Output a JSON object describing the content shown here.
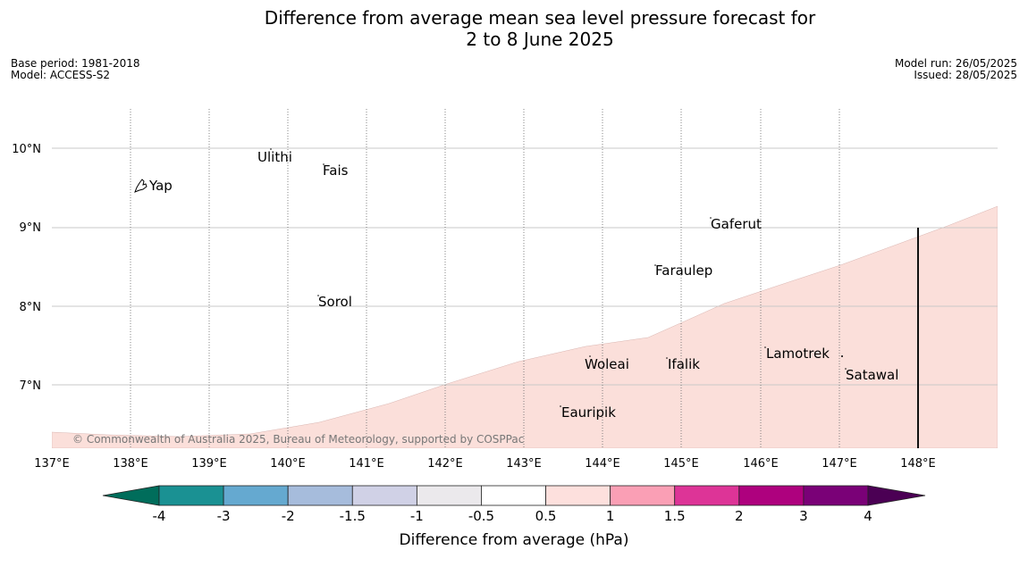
{
  "title": {
    "line1": "Difference from average mean sea level pressure forecast for",
    "line2": "2 to 8 June 2025"
  },
  "meta": {
    "base_period": "Base period: 1981-2018",
    "model": "Model: ACCESS-S2",
    "model_run": "Model run: 26/05/2025",
    "issued": "Issued: 28/05/2025"
  },
  "map": {
    "background_color": "#ffffff",
    "anomaly_fill_color": "#fbdfda",
    "lon_ticks": [
      "137°E",
      "138°E",
      "139°E",
      "140°E",
      "141°E",
      "142°E",
      "143°E",
      "144°E",
      "145°E",
      "146°E",
      "147°E",
      "148°E"
    ],
    "lat_ticks": [
      "10°N",
      "9°N",
      "8°N",
      "7°N"
    ],
    "places": [
      {
        "name": "Yap"
      },
      {
        "name": "Ulithi"
      },
      {
        "name": "Fais"
      },
      {
        "name": "Gaferut"
      },
      {
        "name": "Faraulep"
      },
      {
        "name": "Sorol"
      },
      {
        "name": "Lamotrek"
      },
      {
        "name": "Woleai"
      },
      {
        "name": "Ifalik"
      },
      {
        "name": "Satawal"
      },
      {
        "name": "Eauripik"
      }
    ],
    "copyright": "© Commonwealth of Australia 2025, Bureau of Meteorology, supported by COSPPac"
  },
  "colorbar": {
    "title": "Difference from average (hPa)",
    "ticks": [
      "-4",
      "-3",
      "-2",
      "-1.5",
      "-1",
      "-0.5",
      "0.5",
      "1",
      "1.5",
      "2",
      "3",
      "4"
    ],
    "under_color": "#006d5b",
    "over_color": "#4b0054",
    "colors": [
      "#1a9193",
      "#65a9d0",
      "#a6bcdc",
      "#d0d1e6",
      "#ebe9ec",
      "#ffffff",
      "#fde0dd",
      "#fa9fb5",
      "#dd3497",
      "#ae017e",
      "#7a0177"
    ]
  }
}
